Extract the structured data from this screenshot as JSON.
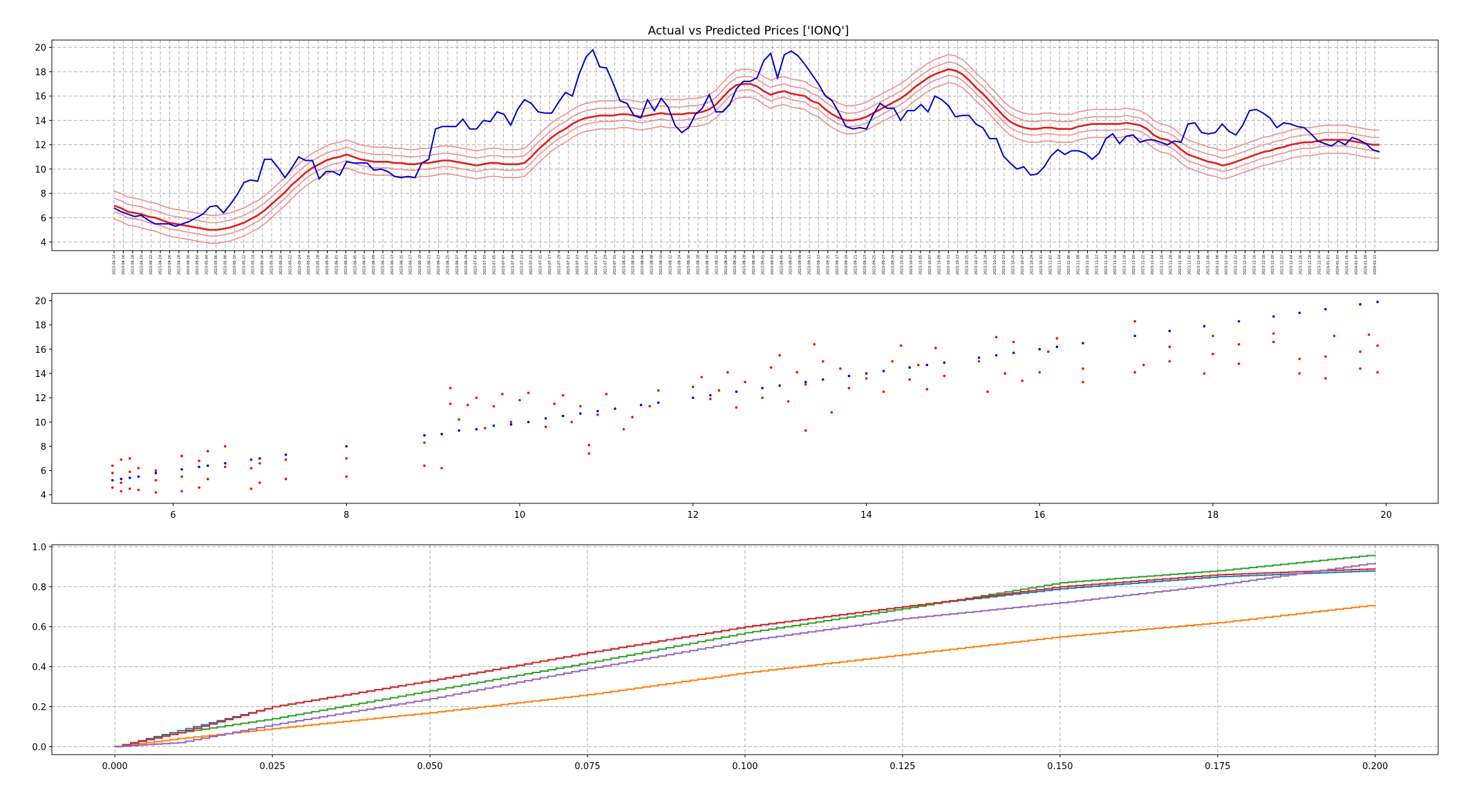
{
  "chart_data": [
    {
      "type": "line",
      "title": "Actual vs Predicted Prices ['IONQ']",
      "xlabel": "",
      "ylabel": "",
      "ylim": [
        3.3,
        20.6
      ],
      "yticks": [
        4,
        6,
        8,
        10,
        12,
        14,
        16,
        18,
        20
      ],
      "grid": true,
      "x_start_date": "2023-04-14",
      "x_end_date": "2024-01-12",
      "x_tick_step_days": 2,
      "series": [
        {
          "name": "actual",
          "color": "#0000cc",
          "values": [
            6.8,
            6.5,
            6.3,
            6.1,
            6.2,
            5.8,
            5.5,
            5.5,
            5.5,
            5.3,
            5.5,
            5.7,
            6.0,
            6.3,
            6.9,
            7.0,
            6.4,
            7.1,
            7.9,
            8.9,
            9.1,
            9.0,
            10.8,
            10.8,
            10.1,
            9.3,
            10.1,
            11.0,
            10.7,
            10.7,
            9.2,
            9.8,
            9.8,
            9.5,
            10.6,
            10.5,
            10.5,
            10.5,
            9.9,
            10.0,
            9.8,
            9.4,
            9.3,
            9.4,
            9.3,
            10.5,
            10.8,
            13.3,
            13.5,
            13.5,
            13.5,
            14.1,
            13.3,
            13.3,
            14.0,
            13.9,
            14.7,
            14.5,
            13.6,
            14.9,
            15.7,
            15.4,
            14.7,
            14.6,
            14.6,
            15.5,
            16.3,
            16.0,
            17.8,
            19.2,
            19.8,
            18.4,
            18.3,
            17.0,
            15.6,
            15.4,
            14.4,
            14.2,
            15.7,
            14.8,
            15.8,
            15.1,
            13.6,
            13.0,
            13.4,
            14.5,
            15.0,
            16.1,
            14.7,
            14.7,
            15.3,
            16.6,
            17.2,
            17.2,
            17.5,
            18.9,
            19.5,
            17.5,
            19.4,
            19.7,
            19.3,
            18.6,
            17.8,
            17.0,
            16.0,
            15.6,
            14.6,
            13.5,
            13.3,
            13.4,
            13.3,
            14.5,
            15.4,
            15.0,
            15.0,
            14.0,
            14.8,
            14.8,
            15.3,
            14.7,
            16.0,
            15.7,
            15.2,
            14.3,
            14.4,
            14.4,
            13.7,
            13.4,
            12.5,
            12.5,
            11.1,
            10.5,
            10.0,
            10.2,
            9.5,
            9.6,
            10.2,
            11.1,
            11.6,
            11.2,
            11.5,
            11.5,
            11.3,
            10.8,
            11.3,
            12.5,
            12.9,
            12.1,
            12.7,
            12.8,
            12.2,
            12.4,
            12.4,
            12.2,
            12.0,
            12.3,
            12.2,
            13.7,
            13.8,
            13.0,
            12.9,
            13.0,
            13.7,
            13.1,
            12.8,
            13.6,
            14.8,
            14.9,
            14.6,
            14.2,
            13.4,
            13.8,
            13.7,
            13.5,
            13.4,
            12.9,
            12.3,
            12.1,
            11.9,
            12.3,
            12.0,
            12.6,
            12.4,
            12.1,
            11.6,
            11.4
          ]
        },
        {
          "name": "predicted_q50",
          "color": "#e41a1c",
          "values": [
            7.0,
            6.8,
            6.5,
            6.4,
            6.3,
            6.1,
            6.0,
            5.8,
            5.6,
            5.5,
            5.4,
            5.3,
            5.2,
            5.1,
            5.0,
            5.0,
            5.1,
            5.2,
            5.4,
            5.6,
            5.9,
            6.2,
            6.6,
            7.1,
            7.6,
            8.1,
            8.7,
            9.2,
            9.7,
            10.1,
            10.4,
            10.7,
            10.9,
            11.0,
            11.2,
            11.0,
            10.8,
            10.7,
            10.6,
            10.6,
            10.6,
            10.5,
            10.5,
            10.4,
            10.4,
            10.5,
            10.5,
            10.6,
            10.7,
            10.7,
            10.6,
            10.5,
            10.4,
            10.3,
            10.4,
            10.5,
            10.5,
            10.4,
            10.4,
            10.4,
            10.5,
            11.0,
            11.6,
            12.1,
            12.6,
            13.0,
            13.3,
            13.7,
            14.0,
            14.2,
            14.3,
            14.4,
            14.4,
            14.4,
            14.5,
            14.5,
            14.4,
            14.3,
            14.4,
            14.5,
            14.6,
            14.5,
            14.5,
            14.5,
            14.6,
            14.6,
            14.7,
            14.9,
            15.3,
            15.9,
            16.5,
            16.9,
            17.0,
            17.0,
            16.8,
            16.4,
            16.1,
            16.3,
            16.4,
            16.2,
            16.1,
            16.0,
            15.6,
            15.4,
            14.9,
            14.5,
            14.2,
            14.0,
            14.0,
            14.1,
            14.3,
            14.6,
            14.9,
            15.2,
            15.5,
            15.8,
            16.2,
            16.7,
            17.1,
            17.5,
            17.8,
            18.0,
            18.2,
            18.1,
            17.8,
            17.3,
            16.7,
            16.2,
            15.6,
            15.0,
            14.4,
            13.9,
            13.6,
            13.4,
            13.3,
            13.3,
            13.4,
            13.4,
            13.3,
            13.3,
            13.3,
            13.5,
            13.6,
            13.7,
            13.7,
            13.7,
            13.7,
            13.7,
            13.8,
            13.7,
            13.6,
            13.3,
            12.8,
            12.5,
            12.4,
            12.1,
            11.6,
            11.2,
            11.0,
            10.8,
            10.6,
            10.5,
            10.3,
            10.4,
            10.6,
            10.8,
            11.0,
            11.2,
            11.4,
            11.5,
            11.7,
            11.8,
            12.0,
            12.1,
            12.2,
            12.2,
            12.3,
            12.4,
            12.4,
            12.4,
            12.4,
            12.3,
            12.2,
            12.1,
            12.0,
            12.0
          ]
        }
      ],
      "band_series": [
        {
          "name": "predicted_q90",
          "color": "#f08080",
          "offset_from_median": 1.2
        },
        {
          "name": "predicted_q75",
          "color": "#f08080",
          "offset_from_median": 0.6
        },
        {
          "name": "predicted_q25",
          "color": "#f08080",
          "offset_from_median": -0.5
        },
        {
          "name": "predicted_q10",
          "color": "#f08080",
          "offset_from_median": -1.1
        }
      ]
    },
    {
      "type": "scatter",
      "title": "",
      "xlabel": "",
      "ylabel": "",
      "xlim": [
        4.6,
        20.6
      ],
      "ylim": [
        3.3,
        20.6
      ],
      "xticks": [
        6,
        8,
        10,
        12,
        14,
        16,
        18,
        20
      ],
      "yticks": [
        4,
        6,
        8,
        10,
        12,
        14,
        16,
        18,
        20
      ],
      "grid": false,
      "actual_color": "#0000ff",
      "predicted_color": "#ff0000",
      "actual_points": [
        [
          5.3,
          5.2
        ],
        [
          5.4,
          5.3
        ],
        [
          5.5,
          5.4
        ],
        [
          5.6,
          5.5
        ],
        [
          5.8,
          5.8
        ],
        [
          6.1,
          6.1
        ],
        [
          6.3,
          6.3
        ],
        [
          6.4,
          6.4
        ],
        [
          6.6,
          6.6
        ],
        [
          6.9,
          6.9
        ],
        [
          7.0,
          7.0
        ],
        [
          7.3,
          7.3
        ],
        [
          8.0,
          8.0
        ],
        [
          8.9,
          8.9
        ],
        [
          9.1,
          9.0
        ],
        [
          9.3,
          9.3
        ],
        [
          9.5,
          9.4
        ],
        [
          9.7,
          9.7
        ],
        [
          9.9,
          9.8
        ],
        [
          10.1,
          10.0
        ],
        [
          10.3,
          10.3
        ],
        [
          10.5,
          10.5
        ],
        [
          10.7,
          10.7
        ],
        [
          10.9,
          10.9
        ],
        [
          11.1,
          11.1
        ],
        [
          11.4,
          11.4
        ],
        [
          11.6,
          11.6
        ],
        [
          12.0,
          12.0
        ],
        [
          12.2,
          12.2
        ],
        [
          12.5,
          12.5
        ],
        [
          12.8,
          12.8
        ],
        [
          13.0,
          13.0
        ],
        [
          13.3,
          13.3
        ],
        [
          13.5,
          13.5
        ],
        [
          13.8,
          13.8
        ],
        [
          14.0,
          14.0
        ],
        [
          14.2,
          14.2
        ],
        [
          14.5,
          14.5
        ],
        [
          14.7,
          14.7
        ],
        [
          14.9,
          14.9
        ],
        [
          15.3,
          15.3
        ],
        [
          15.5,
          15.5
        ],
        [
          15.7,
          15.7
        ],
        [
          16.0,
          16.0
        ],
        [
          16.2,
          16.2
        ],
        [
          16.5,
          16.5
        ],
        [
          17.1,
          17.1
        ],
        [
          17.5,
          17.5
        ],
        [
          17.9,
          17.9
        ],
        [
          18.3,
          18.3
        ],
        [
          18.7,
          18.7
        ],
        [
          19.0,
          19.0
        ],
        [
          19.3,
          19.3
        ],
        [
          19.7,
          19.7
        ],
        [
          19.9,
          19.9
        ]
      ],
      "predicted_points": [
        [
          5.3,
          4.6
        ],
        [
          5.3,
          5.8
        ],
        [
          5.3,
          6.4
        ],
        [
          5.4,
          4.3
        ],
        [
          5.4,
          5.0
        ],
        [
          5.4,
          6.9
        ],
        [
          5.5,
          4.5
        ],
        [
          5.5,
          5.9
        ],
        [
          5.5,
          7.0
        ],
        [
          5.6,
          4.4
        ],
        [
          5.6,
          6.2
        ],
        [
          5.8,
          4.2
        ],
        [
          5.8,
          5.2
        ],
        [
          5.8,
          6.0
        ],
        [
          6.1,
          4.3
        ],
        [
          6.1,
          5.5
        ],
        [
          6.1,
          7.2
        ],
        [
          6.3,
          4.6
        ],
        [
          6.3,
          6.8
        ],
        [
          6.4,
          5.3
        ],
        [
          6.4,
          7.6
        ],
        [
          6.6,
          6.3
        ],
        [
          6.6,
          8.0
        ],
        [
          6.9,
          4.5
        ],
        [
          6.9,
          6.2
        ],
        [
          7.0,
          5.0
        ],
        [
          7.0,
          6.6
        ],
        [
          7.3,
          5.3
        ],
        [
          7.3,
          6.9
        ],
        [
          8.0,
          5.5
        ],
        [
          8.0,
          7.0
        ],
        [
          8.9,
          6.4
        ],
        [
          8.9,
          8.3
        ],
        [
          9.1,
          6.2
        ],
        [
          9.2,
          11.5
        ],
        [
          9.2,
          12.8
        ],
        [
          9.3,
          10.2
        ],
        [
          9.4,
          11.4
        ],
        [
          9.5,
          12.0
        ],
        [
          9.6,
          9.5
        ],
        [
          9.7,
          11.3
        ],
        [
          9.8,
          12.3
        ],
        [
          9.9,
          10.0
        ],
        [
          10.0,
          11.8
        ],
        [
          10.1,
          12.4
        ],
        [
          10.3,
          9.6
        ],
        [
          10.4,
          11.5
        ],
        [
          10.5,
          12.2
        ],
        [
          10.6,
          10.0
        ],
        [
          10.7,
          11.3
        ],
        [
          10.8,
          7.4
        ],
        [
          10.8,
          8.1
        ],
        [
          10.9,
          10.6
        ],
        [
          11.0,
          12.3
        ],
        [
          11.2,
          9.4
        ],
        [
          11.3,
          10.4
        ],
        [
          11.5,
          11.3
        ],
        [
          11.6,
          12.6
        ],
        [
          12.0,
          12.9
        ],
        [
          12.1,
          13.7
        ],
        [
          12.2,
          11.9
        ],
        [
          12.3,
          12.6
        ],
        [
          12.4,
          14.1
        ],
        [
          12.5,
          11.2
        ],
        [
          12.6,
          13.3
        ],
        [
          12.8,
          12.0
        ],
        [
          12.9,
          14.5
        ],
        [
          13.0,
          15.5
        ],
        [
          13.1,
          11.7
        ],
        [
          13.2,
          14.1
        ],
        [
          13.3,
          13.1
        ],
        [
          13.3,
          9.3
        ],
        [
          13.4,
          16.4
        ],
        [
          13.5,
          15.0
        ],
        [
          13.6,
          10.8
        ],
        [
          13.7,
          14.4
        ],
        [
          13.8,
          12.8
        ],
        [
          14.0,
          13.6
        ],
        [
          14.2,
          12.5
        ],
        [
          14.3,
          15.0
        ],
        [
          14.4,
          16.3
        ],
        [
          14.5,
          13.5
        ],
        [
          14.6,
          14.7
        ],
        [
          14.7,
          12.7
        ],
        [
          14.8,
          16.1
        ],
        [
          14.9,
          13.8
        ],
        [
          15.3,
          15.0
        ],
        [
          15.4,
          12.5
        ],
        [
          15.5,
          17.0
        ],
        [
          15.6,
          14.0
        ],
        [
          15.7,
          16.6
        ],
        [
          15.8,
          13.4
        ],
        [
          16.0,
          14.1
        ],
        [
          16.1,
          15.8
        ],
        [
          16.2,
          16.9
        ],
        [
          16.5,
          13.3
        ],
        [
          16.5,
          14.4
        ],
        [
          17.1,
          14.1
        ],
        [
          17.1,
          18.3
        ],
        [
          17.2,
          14.7
        ],
        [
          17.5,
          15.0
        ],
        [
          17.5,
          16.2
        ],
        [
          17.9,
          14.0
        ],
        [
          18.0,
          15.6
        ],
        [
          18.0,
          17.1
        ],
        [
          18.3,
          14.8
        ],
        [
          18.3,
          16.4
        ],
        [
          18.7,
          16.6
        ],
        [
          18.7,
          17.3
        ],
        [
          19.0,
          14.0
        ],
        [
          19.0,
          15.2
        ],
        [
          19.3,
          13.6
        ],
        [
          19.3,
          15.4
        ],
        [
          19.4,
          17.1
        ],
        [
          19.7,
          14.4
        ],
        [
          19.7,
          15.8
        ],
        [
          19.8,
          17.2
        ],
        [
          19.9,
          14.1
        ],
        [
          19.9,
          16.3
        ]
      ]
    },
    {
      "type": "line",
      "title": "",
      "xlabel": "",
      "ylabel": "",
      "xlim": [
        -0.01,
        0.21
      ],
      "ylim": [
        -0.04,
        1.01
      ],
      "xticks": [
        0.0,
        0.025,
        0.05,
        0.075,
        0.1,
        0.125,
        0.15,
        0.175,
        0.2
      ],
      "xtick_labels": [
        "0.000",
        "0.025",
        "0.050",
        "0.075",
        "0.100",
        "0.125",
        "0.150",
        "0.175",
        "0.200"
      ],
      "yticks": [
        0.0,
        0.2,
        0.4,
        0.6,
        0.8,
        1.0
      ],
      "ytick_labels": [
        "0.0",
        "0.2",
        "0.4",
        "0.6",
        "0.8",
        "1.0"
      ],
      "grid": true,
      "step": true,
      "x": [
        0.0,
        0.01,
        0.025,
        0.05,
        0.075,
        0.1,
        0.125,
        0.15,
        0.175,
        0.2
      ],
      "series": [
        {
          "name": "blue",
          "color": "#1f77b4",
          "values": [
            0.0,
            0.08,
            0.2,
            0.33,
            0.47,
            0.6,
            0.7,
            0.79,
            0.85,
            0.88
          ]
        },
        {
          "name": "orange",
          "color": "#ff7f0e",
          "values": [
            0.0,
            0.04,
            0.09,
            0.17,
            0.26,
            0.37,
            0.46,
            0.55,
            0.62,
            0.71
          ]
        },
        {
          "name": "green",
          "color": "#2ca02c",
          "values": [
            0.0,
            0.07,
            0.14,
            0.28,
            0.42,
            0.57,
            0.69,
            0.82,
            0.88,
            0.96
          ]
        },
        {
          "name": "red",
          "color": "#d62728",
          "values": [
            0.0,
            0.07,
            0.2,
            0.33,
            0.47,
            0.6,
            0.7,
            0.8,
            0.86,
            0.89
          ]
        },
        {
          "name": "purple",
          "color": "#9467bd",
          "values": [
            0.0,
            0.02,
            0.11,
            0.24,
            0.39,
            0.53,
            0.64,
            0.72,
            0.81,
            0.92
          ]
        }
      ]
    }
  ]
}
